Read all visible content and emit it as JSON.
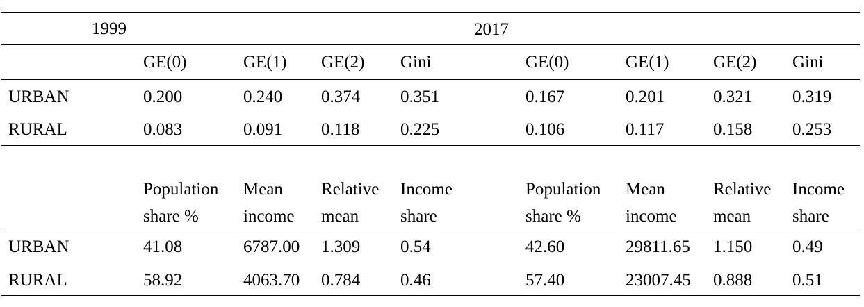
{
  "year_left": "1999",
  "year_right": "2017",
  "inequality": {
    "headers": [
      "GE(0)",
      "GE(1)",
      "GE(2)",
      "Gini",
      "GE(0)",
      "GE(1)",
      "GE(2)",
      "Gini"
    ],
    "rows": [
      {
        "label": "URBAN",
        "values": [
          "0.200",
          "0.240",
          "0.374",
          "0.351",
          "0.167",
          "0.201",
          "0.321",
          "0.319"
        ]
      },
      {
        "label": "RURAL",
        "values": [
          "0.083",
          "0.091",
          "0.118",
          "0.225",
          "0.106",
          "0.117",
          "0.158",
          "0.253"
        ]
      }
    ]
  },
  "shares": {
    "headers_line1": [
      "Population",
      "Mean",
      "Relative",
      "Income",
      "Population",
      "Mean",
      "Relative",
      "Income"
    ],
    "headers_line2": [
      "share %",
      "income",
      "mean",
      "share",
      "share %",
      "income",
      "mean",
      "share"
    ],
    "rows": [
      {
        "label": "URBAN",
        "values": [
          "41.08",
          "6787.00",
          "1.309",
          "0.54",
          "42.60",
          "29811.65",
          "1.150",
          "0.49"
        ]
      },
      {
        "label": "RURAL",
        "values": [
          "58.92",
          "4063.70",
          "0.784",
          "0.46",
          "57.40",
          "23007.45",
          "0.888",
          "0.51"
        ]
      }
    ]
  }
}
